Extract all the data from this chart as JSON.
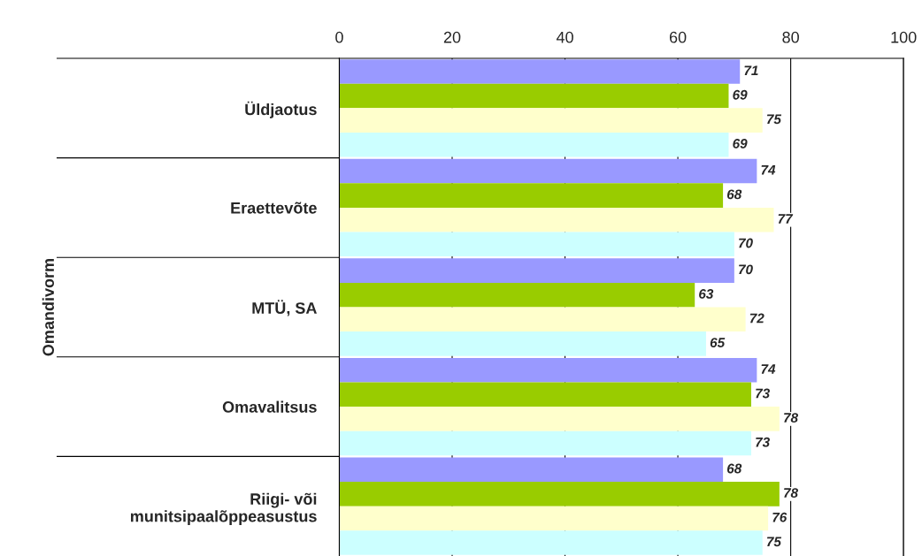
{
  "chart_data": {
    "type": "bar",
    "orientation": "horizontal",
    "ylabel": "Omandivorm",
    "categories": [
      "Üldjaotus",
      "Eraettevõte",
      "MTÜ, SA",
      "Omavalitsus",
      "Riigi- või\nmunitsipaalõppeasustus"
    ],
    "series": [
      {
        "color": "#9999ff",
        "values": [
          71,
          74,
          70,
          74,
          68
        ]
      },
      {
        "color": "#99cc00",
        "values": [
          69,
          68,
          63,
          73,
          78
        ]
      },
      {
        "color": "#ffffcc",
        "values": [
          75,
          77,
          72,
          78,
          76
        ]
      },
      {
        "color": "#ccffff",
        "values": [
          69,
          70,
          65,
          73,
          75
        ]
      }
    ],
    "xlim": [
      0,
      100
    ],
    "xticks": [
      0,
      20,
      40,
      60,
      80,
      100
    ],
    "grid": "x",
    "data_labels": true,
    "legend": false
  }
}
